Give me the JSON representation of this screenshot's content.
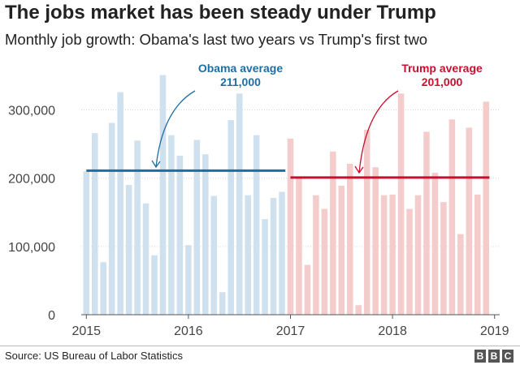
{
  "page": {
    "title": "The jobs market has been steady under Trump",
    "subtitle": "Monthly job growth: Obama's last two years vs Trump's first two",
    "source": "Source: US Bureau of Labor Statistics",
    "logo": [
      "B",
      "B",
      "C"
    ]
  },
  "chart_data": {
    "type": "bar",
    "y_ticks": [
      0,
      100000,
      200000,
      300000
    ],
    "y_tick_labels": [
      "0",
      "100,000",
      "200,000",
      "300,000"
    ],
    "x_ticks": [
      2015,
      2016,
      2017,
      2018,
      2019
    ],
    "x_tick_labels": [
      "2015",
      "2016",
      "2017",
      "2018",
      "2019"
    ],
    "ylim": [
      0,
      360000
    ],
    "xlim": [
      2014.95,
      2019.05
    ],
    "grid": "horizontal",
    "series": [
      {
        "color": "#cfe1ee",
        "start_year": 2015,
        "values": [
          210000,
          266000,
          77000,
          281000,
          326000,
          190000,
          255000,
          163000,
          87000,
          351000,
          263000,
          233000,
          102000,
          256000,
          235000,
          174000,
          33000,
          285000,
          324000,
          175000,
          263000,
          140000,
          171000,
          180000
        ]
      },
      {
        "color": "#f5cccc",
        "start_year": 2017,
        "values": [
          258000,
          200000,
          73000,
          175000,
          155000,
          239000,
          189000,
          221000,
          14000,
          271000,
          216000,
          175000,
          176000,
          324000,
          155000,
          175000,
          268000,
          208000,
          165000,
          286000,
          118000,
          274000,
          176000,
          312000
        ]
      }
    ],
    "averages": [
      {
        "label_line1": "Obama average",
        "label_line2": "211,000",
        "value": 211000,
        "x_from": 2015.0,
        "x_to": 2016.95,
        "color": "#1c6ea4"
      },
      {
        "label_line1": "Trump average",
        "label_line2": "201,000",
        "value": 201000,
        "x_from": 2017.0,
        "x_to": 2018.95,
        "color": "#c8102e"
      }
    ]
  }
}
